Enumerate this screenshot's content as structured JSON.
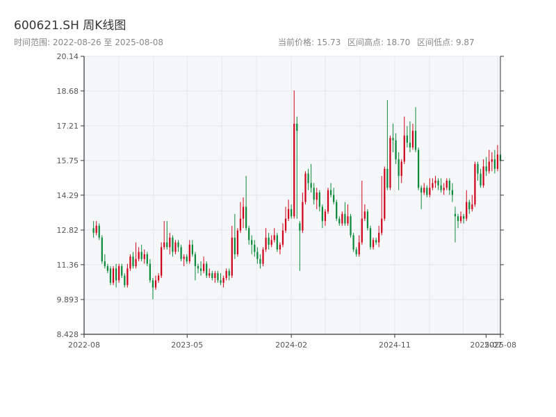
{
  "title": "600621.SH 周K线图",
  "subtitle": "时间范围: 2022-08-26 至 2025-08-08",
  "stats": {
    "current": "当前价格: 15.73",
    "high": "区间高点: 18.70",
    "low": "区间低点: 9.87"
  },
  "colors": {
    "up": "#d0021b",
    "down": "#0a8a3a",
    "plot_bg": "#f6f7f9",
    "grid": "#e3e6ea"
  },
  "chart_data": {
    "type": "candlestick",
    "ylim": [
      8.428,
      20.14
    ],
    "yticks": [
      "8.428",
      "9.893",
      "11.36",
      "12.82",
      "14.29",
      "15.75",
      "17.21",
      "18.68",
      "20.14"
    ],
    "xlim": [
      "2022-08-01",
      "2025-08-08"
    ],
    "xticks": [
      {
        "date": "2022-08-01",
        "label": "2022-08"
      },
      {
        "date": "2023-05-01",
        "label": "2023-05"
      },
      {
        "date": "2024-02-01",
        "label": "2024-02"
      },
      {
        "date": "2024-11-01",
        "label": "2024-11"
      },
      {
        "date": "2025-07-01",
        "label": "2025-07"
      },
      {
        "date": "2025-08-08",
        "label": "2025-08"
      }
    ],
    "grid": true,
    "start_date": "2022-08-26",
    "end_date": "2025-08-08",
    "candles": [
      [
        12.9,
        12.7,
        13.2,
        12.5
      ],
      [
        12.7,
        13.0,
        13.2,
        12.6
      ],
      [
        13.0,
        12.5,
        13.1,
        12.4
      ],
      [
        12.5,
        11.5,
        12.6,
        11.4
      ],
      [
        11.5,
        11.3,
        11.8,
        11.2
      ],
      [
        11.3,
        11.1,
        11.4,
        11.0
      ],
      [
        11.2,
        10.6,
        11.3,
        10.5
      ],
      [
        10.6,
        11.2,
        11.3,
        10.5
      ],
      [
        11.2,
        10.7,
        11.4,
        10.4
      ],
      [
        10.7,
        11.3,
        11.4,
        10.6
      ],
      [
        11.3,
        10.9,
        11.4,
        10.8
      ],
      [
        10.9,
        10.5,
        11.0,
        10.4
      ],
      [
        10.5,
        11.2,
        11.4,
        10.4
      ],
      [
        11.2,
        11.7,
        11.8,
        11.1
      ],
      [
        11.7,
        11.3,
        11.9,
        11.2
      ],
      [
        11.3,
        11.6,
        12.3,
        11.2
      ],
      [
        11.6,
        11.9,
        12.1,
        11.5
      ],
      [
        11.9,
        11.6,
        12.2,
        11.5
      ],
      [
        11.6,
        11.8,
        12.0,
        11.4
      ],
      [
        11.8,
        11.4,
        11.9,
        11.3
      ],
      [
        11.4,
        10.7,
        11.6,
        10.6
      ],
      [
        10.7,
        10.4,
        10.8,
        9.9
      ],
      [
        10.4,
        10.7,
        10.9,
        10.3
      ],
      [
        10.7,
        10.9,
        11.0,
        10.6
      ],
      [
        10.9,
        12.1,
        12.3,
        10.8
      ],
      [
        12.1,
        12.3,
        13.2,
        12.0
      ],
      [
        12.3,
        12.1,
        13.2,
        12.0
      ],
      [
        12.1,
        12.5,
        12.7,
        11.8
      ],
      [
        12.5,
        11.9,
        12.6,
        11.7
      ],
      [
        11.9,
        12.3,
        12.4,
        11.8
      ],
      [
        12.3,
        12.1,
        12.4,
        11.9
      ],
      [
        12.1,
        11.6,
        12.2,
        11.5
      ],
      [
        11.6,
        11.7,
        11.8,
        11.3
      ],
      [
        11.7,
        11.5,
        11.8,
        11.4
      ],
      [
        11.5,
        12.2,
        12.4,
        11.4
      ],
      [
        12.2,
        11.8,
        12.4,
        11.7
      ],
      [
        11.8,
        11.3,
        11.9,
        10.7
      ],
      [
        11.3,
        11.2,
        11.4,
        11.0
      ],
      [
        11.2,
        11.1,
        11.5,
        10.9
      ],
      [
        11.1,
        11.4,
        11.7,
        11.0
      ],
      [
        11.4,
        10.9,
        11.5,
        10.8
      ],
      [
        10.9,
        11.0,
        11.2,
        10.8
      ],
      [
        11.0,
        10.8,
        11.1,
        10.7
      ],
      [
        10.8,
        11.0,
        11.1,
        10.6
      ],
      [
        11.0,
        10.7,
        11.1,
        10.6
      ],
      [
        10.7,
        10.6,
        11.0,
        10.5
      ],
      [
        10.6,
        10.8,
        10.9,
        10.4
      ],
      [
        10.8,
        11.1,
        11.2,
        10.7
      ],
      [
        11.1,
        10.9,
        11.2,
        10.7
      ],
      [
        10.9,
        12.5,
        13.0,
        10.8
      ],
      [
        12.5,
        11.8,
        13.5,
        11.6
      ],
      [
        11.8,
        12.8,
        12.9,
        11.7
      ],
      [
        12.8,
        13.3,
        14.0,
        12.7
      ],
      [
        13.3,
        13.8,
        14.2,
        12.9
      ],
      [
        13.8,
        12.9,
        15.1,
        12.8
      ],
      [
        12.9,
        12.4,
        13.0,
        12.2
      ],
      [
        12.4,
        12.2,
        12.6,
        11.8
      ],
      [
        12.2,
        11.9,
        12.4,
        11.7
      ],
      [
        11.9,
        11.6,
        12.1,
        11.4
      ],
      [
        11.6,
        11.4,
        11.8,
        11.2
      ],
      [
        11.4,
        12.0,
        12.1,
        11.3
      ],
      [
        12.0,
        12.5,
        12.9,
        11.9
      ],
      [
        12.5,
        12.2,
        12.7,
        12.0
      ],
      [
        12.2,
        12.4,
        12.6,
        12.1
      ],
      [
        12.4,
        12.6,
        12.9,
        12.3
      ],
      [
        12.6,
        12.0,
        12.7,
        11.9
      ],
      [
        12.0,
        12.2,
        12.3,
        11.8
      ],
      [
        12.2,
        12.8,
        13.1,
        12.1
      ],
      [
        12.8,
        13.3,
        13.8,
        12.7
      ],
      [
        13.3,
        13.7,
        14.1,
        13.2
      ],
      [
        13.7,
        13.4,
        13.9,
        13.3
      ],
      [
        13.4,
        17.3,
        18.7,
        13.3
      ],
      [
        17.3,
        17.0,
        17.6,
        13.3
      ],
      [
        13.1,
        12.8,
        13.2,
        11.1
      ],
      [
        12.8,
        14.0,
        14.4,
        12.7
      ],
      [
        14.0,
        15.2,
        15.3,
        13.9
      ],
      [
        15.2,
        14.8,
        15.4,
        14.5
      ],
      [
        14.8,
        14.6,
        15.6,
        14.4
      ],
      [
        14.6,
        14.1,
        14.8,
        13.9
      ],
      [
        14.1,
        14.4,
        14.6,
        13.7
      ],
      [
        14.4,
        13.8,
        14.5,
        13.6
      ],
      [
        13.8,
        13.2,
        13.9,
        12.9
      ],
      [
        13.2,
        13.6,
        13.7,
        13.0
      ],
      [
        13.6,
        14.5,
        14.6,
        13.5
      ],
      [
        14.5,
        14.3,
        14.8,
        14.2
      ],
      [
        14.3,
        14.0,
        14.6,
        13.9
      ],
      [
        14.0,
        13.3,
        14.1,
        13.2
      ],
      [
        13.3,
        13.1,
        13.4,
        13.0
      ],
      [
        13.1,
        13.5,
        13.6,
        13.0
      ],
      [
        13.5,
        13.1,
        14.0,
        13.0
      ],
      [
        13.1,
        13.4,
        13.9,
        13.0
      ],
      [
        13.4,
        12.6,
        13.5,
        12.5
      ],
      [
        12.6,
        12.0,
        12.7,
        11.9
      ],
      [
        12.0,
        11.8,
        12.1,
        11.7
      ],
      [
        11.8,
        12.3,
        12.6,
        11.7
      ],
      [
        12.3,
        13.3,
        14.9,
        12.2
      ],
      [
        13.3,
        13.6,
        13.9,
        13.2
      ],
      [
        13.6,
        12.9,
        13.7,
        12.8
      ],
      [
        12.9,
        12.1,
        13.0,
        12.0
      ],
      [
        12.1,
        12.4,
        12.5,
        12.0
      ],
      [
        12.4,
        12.3,
        12.5,
        12.2
      ],
      [
        12.3,
        12.7,
        13.0,
        12.1
      ],
      [
        12.7,
        13.3,
        15.1,
        12.6
      ],
      [
        13.3,
        15.4,
        15.5,
        13.2
      ],
      [
        15.4,
        14.6,
        18.3,
        14.5
      ],
      [
        14.6,
        16.7,
        16.8,
        14.5
      ],
      [
        16.7,
        16.6,
        17.3,
        16.1
      ],
      [
        16.6,
        15.8,
        16.9,
        15.6
      ],
      [
        15.8,
        15.1,
        16.1,
        14.5
      ],
      [
        15.1,
        15.7,
        15.8,
        14.8
      ],
      [
        15.7,
        16.8,
        17.6,
        15.6
      ],
      [
        16.8,
        16.5,
        17.2,
        16.3
      ],
      [
        16.5,
        16.3,
        17.4,
        16.1
      ],
      [
        16.3,
        17.0,
        17.3,
        16.2
      ],
      [
        17.0,
        16.2,
        18.0,
        16.1
      ],
      [
        16.2,
        14.6,
        16.3,
        14.5
      ],
      [
        14.6,
        14.4,
        14.7,
        13.7
      ],
      [
        14.4,
        14.6,
        14.8,
        14.3
      ],
      [
        14.6,
        14.3,
        14.7,
        14.2
      ],
      [
        14.3,
        14.6,
        15.0,
        14.2
      ],
      [
        14.6,
        14.8,
        15.0,
        14.5
      ],
      [
        14.8,
        14.9,
        15.1,
        14.6
      ],
      [
        14.9,
        14.7,
        15.0,
        14.5
      ],
      [
        14.7,
        14.5,
        15.0,
        14.4
      ],
      [
        14.5,
        14.6,
        14.8,
        14.3
      ],
      [
        14.6,
        14.9,
        15.0,
        14.5
      ],
      [
        14.9,
        14.5,
        15.0,
        14.3
      ],
      [
        14.5,
        14.3,
        14.8,
        14.0
      ],
      [
        13.5,
        13.4,
        13.8,
        12.3
      ],
      [
        13.4,
        13.2,
        13.5,
        12.9
      ],
      [
        13.2,
        13.4,
        13.6,
        13.1
      ],
      [
        13.4,
        13.3,
        13.5,
        13.1
      ],
      [
        13.3,
        14.0,
        14.5,
        13.2
      ],
      [
        14.0,
        13.7,
        14.1,
        13.5
      ],
      [
        13.7,
        13.9,
        14.3,
        13.6
      ],
      [
        13.9,
        15.6,
        15.7,
        13.8
      ],
      [
        15.6,
        15.2,
        15.7,
        14.9
      ],
      [
        15.2,
        14.7,
        15.4,
        14.6
      ],
      [
        14.7,
        15.5,
        15.8,
        14.6
      ],
      [
        15.5,
        15.3,
        15.9,
        15.1
      ],
      [
        15.3,
        15.7,
        16.2,
        15.2
      ],
      [
        15.7,
        15.8,
        16.1,
        15.3
      ],
      [
        15.8,
        15.4,
        16.2,
        15.2
      ],
      [
        15.4,
        16.0,
        16.4,
        15.3
      ],
      [
        16.0,
        15.73,
        16.3,
        15.5
      ]
    ]
  }
}
